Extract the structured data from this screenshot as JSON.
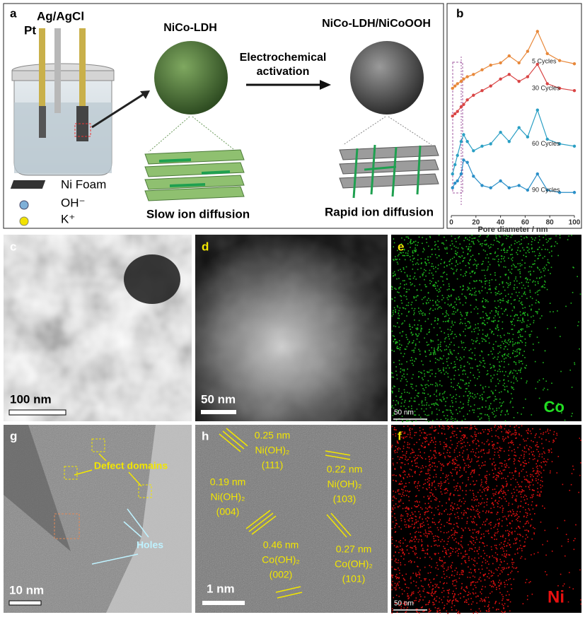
{
  "panel_a": {
    "label": "a",
    "electrode_1": "Pt",
    "electrode_2": "Ag/AgCl",
    "title_left": "NiCo-LDH",
    "title_right": "NiCo-LDH/NiCoOOH",
    "arrow_label_1": "Electrochemical",
    "arrow_label_2": "activation",
    "caption_left": "Slow ion diffusion",
    "caption_right": "Rapid ion diffusion",
    "legend": [
      "Ni Foam",
      "OH⁻",
      "K⁺"
    ]
  },
  "chart_data": {
    "type": "line",
    "label": "b",
    "xlabel": "Pore diameter / nm",
    "xlim": [
      0,
      100
    ],
    "xticks": [
      0,
      20,
      40,
      60,
      80,
      100
    ],
    "ylim": [
      0,
      4.2
    ],
    "x": [
      1,
      3,
      5,
      8,
      10,
      13,
      18,
      25,
      32,
      40,
      47,
      55,
      62,
      70,
      78,
      88,
      100
    ],
    "series": [
      {
        "name": "5 Cycles",
        "color": "#e8883a",
        "values": [
          2.75,
          2.8,
          2.85,
          2.9,
          2.95,
          3.0,
          3.05,
          3.15,
          3.25,
          3.3,
          3.45,
          3.3,
          3.55,
          3.98,
          3.5,
          3.35,
          3.28
        ]
      },
      {
        "name": "30 Cycles",
        "color": "#d94545",
        "values": [
          2.15,
          2.2,
          2.25,
          2.35,
          2.4,
          2.5,
          2.6,
          2.7,
          2.8,
          2.95,
          3.05,
          2.9,
          3.0,
          3.27,
          2.85,
          2.75,
          2.7
        ]
      },
      {
        "name": "60 Cycles",
        "color": "#2a9fc4",
        "values": [
          0.9,
          1.1,
          1.3,
          1.6,
          1.75,
          1.6,
          1.4,
          1.5,
          1.55,
          1.8,
          1.6,
          1.9,
          1.7,
          2.28,
          1.65,
          1.55,
          1.5
        ]
      },
      {
        "name": "90 Cycles",
        "color": "#2a8fc8",
        "values": [
          0.6,
          0.7,
          0.75,
          0.9,
          1.2,
          1.15,
          0.85,
          0.65,
          0.6,
          0.75,
          0.6,
          0.65,
          0.55,
          0.9,
          0.55,
          0.5,
          0.5
        ]
      }
    ]
  },
  "panel_c": {
    "label": "c",
    "scale": "100 nm"
  },
  "panel_d": {
    "label": "d",
    "scale": "50 nm"
  },
  "panel_e": {
    "label": "e",
    "scale": "50 nm",
    "element": "Co"
  },
  "panel_g": {
    "label": "g",
    "scale": "10 nm",
    "defects": "Defect domains",
    "holes": "Holes"
  },
  "panel_h": {
    "label": "h",
    "scale": "1 nm",
    "lattices": [
      {
        "spacing": "0.25 nm",
        "phase": "Ni(OH)₂",
        "plane": "(111)"
      },
      {
        "spacing": "0.22 nm",
        "phase": "Ni(OH)₂",
        "plane": "(103)"
      },
      {
        "spacing": "0.19 nm",
        "phase": "Ni(OH)₂",
        "plane": "(004)"
      },
      {
        "spacing": "0.46 nm",
        "phase": "Co(OH)₂",
        "plane": "(002)"
      },
      {
        "spacing": "0.27 nm",
        "phase": "Co(OH)₂",
        "plane": "(101)"
      }
    ]
  },
  "panel_f": {
    "label": "f",
    "scale": "50 nm",
    "element": "Ni"
  }
}
